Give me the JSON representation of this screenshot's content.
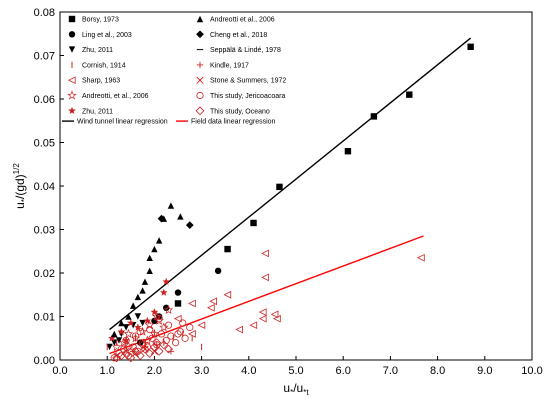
{
  "chart_data": {
    "type": "scatter",
    "title": "",
    "xlabel_main": "u",
    "xlabel_sub": "*",
    "xlabel_sep": "/u",
    "xlabel_sub2": "*t",
    "ylabel_main": "u",
    "ylabel_sub": "*",
    "ylabel_mid": "/(gd)",
    "ylabel_sup": "1/2",
    "xlim": [
      0,
      10
    ],
    "ylim": [
      0,
      0.08
    ],
    "x_ticks": [
      "0.0",
      "1.0",
      "2.0",
      "3.0",
      "4.0",
      "5.0",
      "6.0",
      "7.0",
      "8.0",
      "9.0",
      "10.0"
    ],
    "y_ticks": [
      "0.00",
      "0.01",
      "0.02",
      "0.03",
      "0.04",
      "0.05",
      "0.06",
      "0.07",
      "0.08"
    ],
    "grid": false,
    "legend_placement": "top-left",
    "series": [
      {
        "name": "Borsy, 1973",
        "color": "#000000",
        "marker": "square-filled",
        "points": [
          [
            2.5,
            0.013
          ],
          [
            3.55,
            0.0255
          ],
          [
            4.1,
            0.0315
          ],
          [
            4.65,
            0.0398
          ],
          [
            6.1,
            0.048
          ],
          [
            6.65,
            0.056
          ],
          [
            7.4,
            0.061
          ],
          [
            8.7,
            0.072
          ]
        ]
      },
      {
        "name": "Ling et al., 2003",
        "color": "#000000",
        "marker": "circle-filled",
        "points": [
          [
            1.7,
            0.004
          ],
          [
            2.0,
            0.009
          ],
          [
            2.1,
            0.01
          ],
          [
            2.25,
            0.012
          ],
          [
            2.5,
            0.0155
          ],
          [
            3.35,
            0.0205
          ]
        ]
      },
      {
        "name": "Zhu, 2011",
        "color": "#000000",
        "marker": "triangle-down-filled",
        "points": [
          [
            1.05,
            0.003
          ],
          [
            1.15,
            0.004
          ],
          [
            1.25,
            0.0045
          ],
          [
            1.3,
            0.006
          ],
          [
            1.4,
            0.0075
          ],
          [
            1.55,
            0.008
          ],
          [
            1.65,
            0.01
          ],
          [
            1.75,
            0.0085
          ]
        ]
      },
      {
        "name": "Cornish, 1914",
        "color": "#cc2222",
        "marker": "vbar",
        "points": [
          [
            1.0,
            0.003
          ],
          [
            1.2,
            0.004
          ],
          [
            1.4,
            0.0045
          ],
          [
            1.6,
            0.005
          ],
          [
            1.8,
            0.004
          ],
          [
            2.0,
            0.006
          ],
          [
            2.2,
            0.004
          ],
          [
            2.4,
            0.005
          ],
          [
            2.6,
            0.006
          ],
          [
            2.8,
            0.005
          ],
          [
            3.0,
            0.003
          ]
        ]
      },
      {
        "name": "Sharp, 1963",
        "color": "#cc2222",
        "marker": "triangle-left-open",
        "points": [
          [
            2.5,
            0.0095
          ],
          [
            2.8,
            0.013
          ],
          [
            2.8,
            0.006
          ],
          [
            3.0,
            0.008
          ],
          [
            3.2,
            0.012
          ],
          [
            3.25,
            0.0135
          ],
          [
            3.55,
            0.015
          ],
          [
            3.8,
            0.007
          ],
          [
            4.1,
            0.008
          ],
          [
            4.3,
            0.011
          ],
          [
            4.3,
            0.0095
          ],
          [
            4.35,
            0.019
          ],
          [
            4.35,
            0.0245
          ],
          [
            4.55,
            0.0105
          ],
          [
            4.6,
            0.0095
          ],
          [
            7.65,
            0.0235
          ]
        ]
      },
      {
        "name": "Andreotti, et al., 2006",
        "color": "#cc2222",
        "marker": "star-open",
        "points": [
          [
            1.2,
            0.003
          ],
          [
            1.35,
            0.004
          ],
          [
            1.45,
            0.006
          ],
          [
            1.6,
            0.005
          ],
          [
            1.75,
            0.0065
          ],
          [
            1.9,
            0.008
          ],
          [
            2.0,
            0.006
          ],
          [
            2.1,
            0.009
          ],
          [
            2.2,
            0.0075
          ],
          [
            2.3,
            0.0115
          ],
          [
            1.85,
            0.0045
          ],
          [
            2.05,
            0.01
          ]
        ]
      },
      {
        "name": "Zhu, 2011",
        "color": "#cc2222",
        "marker": "star-filled",
        "points": [
          [
            1.1,
            0.005
          ],
          [
            1.3,
            0.0065
          ],
          [
            1.5,
            0.0085
          ],
          [
            1.65,
            0.0075
          ],
          [
            1.85,
            0.009
          ],
          [
            2.0,
            0.011
          ],
          [
            2.2,
            0.0155
          ],
          [
            2.25,
            0.018
          ],
          [
            1.4,
            0.0045
          ]
        ]
      },
      {
        "name": "Andreotti et al., 2006",
        "color": "#000000",
        "marker": "triangle-up-filled",
        "points": [
          [
            1.15,
            0.006
          ],
          [
            1.3,
            0.0085
          ],
          [
            1.45,
            0.01
          ],
          [
            1.55,
            0.0125
          ],
          [
            1.65,
            0.0145
          ],
          [
            1.75,
            0.016
          ],
          [
            1.8,
            0.018
          ],
          [
            1.9,
            0.0205
          ],
          [
            1.9,
            0.0235
          ],
          [
            2.0,
            0.0255
          ],
          [
            2.1,
            0.0275
          ],
          [
            2.2,
            0.0325
          ],
          [
            2.35,
            0.0355
          ],
          [
            2.55,
            0.033
          ]
        ]
      },
      {
        "name": "Cheng et al., 2018",
        "color": "#000000",
        "marker": "diamond-filled",
        "points": [
          [
            2.15,
            0.0325
          ],
          [
            2.75,
            0.031
          ]
        ]
      },
      {
        "name": "Seppälä & Lindé, 1978",
        "color": "#000000",
        "marker": "dash",
        "points": []
      },
      {
        "name": "Kindle, 1917",
        "color": "#cc2222",
        "marker": "plus",
        "points": [
          [
            1.55,
            0.002
          ],
          [
            1.8,
            0.003
          ],
          [
            2.05,
            0.0035
          ],
          [
            2.35,
            0.002
          ]
        ]
      },
      {
        "name": "Stone & Summers, 1972",
        "color": "#cc2222",
        "marker": "x",
        "points": [
          [
            1.2,
            0.001
          ],
          [
            1.4,
            0.002
          ],
          [
            1.6,
            0.0015
          ],
          [
            1.8,
            0.0025
          ],
          [
            2.0,
            0.002
          ]
        ]
      },
      {
        "name": "This study, Jericoacoara",
        "color": "#cc2222",
        "marker": "circle-open",
        "points": [
          [
            1.15,
            0.0005
          ],
          [
            1.25,
            0.0015
          ],
          [
            1.35,
            0.0025
          ],
          [
            1.45,
            0.001
          ],
          [
            1.55,
            0.003
          ],
          [
            1.65,
            0.002
          ],
          [
            1.75,
            0.004
          ],
          [
            1.85,
            0.003
          ],
          [
            1.95,
            0.005
          ],
          [
            2.05,
            0.0035
          ],
          [
            2.15,
            0.006
          ],
          [
            2.25,
            0.0045
          ],
          [
            2.35,
            0.0055
          ],
          [
            2.45,
            0.004
          ],
          [
            2.55,
            0.0065
          ],
          [
            2.65,
            0.005
          ],
          [
            2.75,
            0.0075
          ],
          [
            2.3,
            0.008
          ],
          [
            1.6,
            0.0055
          ],
          [
            1.9,
            0.007
          ],
          [
            2.1,
            0.0095
          ],
          [
            1.4,
            0.0045
          ],
          [
            2.5,
            0.006
          ],
          [
            1.7,
            0.0065
          ],
          [
            2.6,
            0.0085
          ]
        ]
      },
      {
        "name": "This study, Oceano",
        "color": "#cc2222",
        "marker": "diamond-open",
        "points": [
          [
            1.2,
            0.0005
          ],
          [
            1.3,
            0.001
          ],
          [
            1.4,
            0.0015
          ],
          [
            1.5,
            0.0005
          ],
          [
            1.6,
            0.002
          ],
          [
            1.7,
            0.001
          ],
          [
            1.8,
            0.0025
          ],
          [
            1.9,
            0.0015
          ],
          [
            2.0,
            0.003
          ],
          [
            2.1,
            0.002
          ],
          [
            2.2,
            0.0035
          ],
          [
            2.3,
            0.0025
          ],
          [
            1.45,
            0.003
          ],
          [
            1.75,
            0.0035
          ],
          [
            2.05,
            0.004
          ]
        ]
      }
    ],
    "regressions": [
      {
        "name": "Wind tunnel linear regression",
        "color": "#000000",
        "x": [
          1.05,
          8.7
        ],
        "y": [
          0.007,
          0.074
        ]
      },
      {
        "name": "Field data linear regression",
        "color": "#ff0000",
        "x": [
          1.05,
          7.7
        ],
        "y": [
          0.0015,
          0.0285
        ]
      }
    ]
  }
}
